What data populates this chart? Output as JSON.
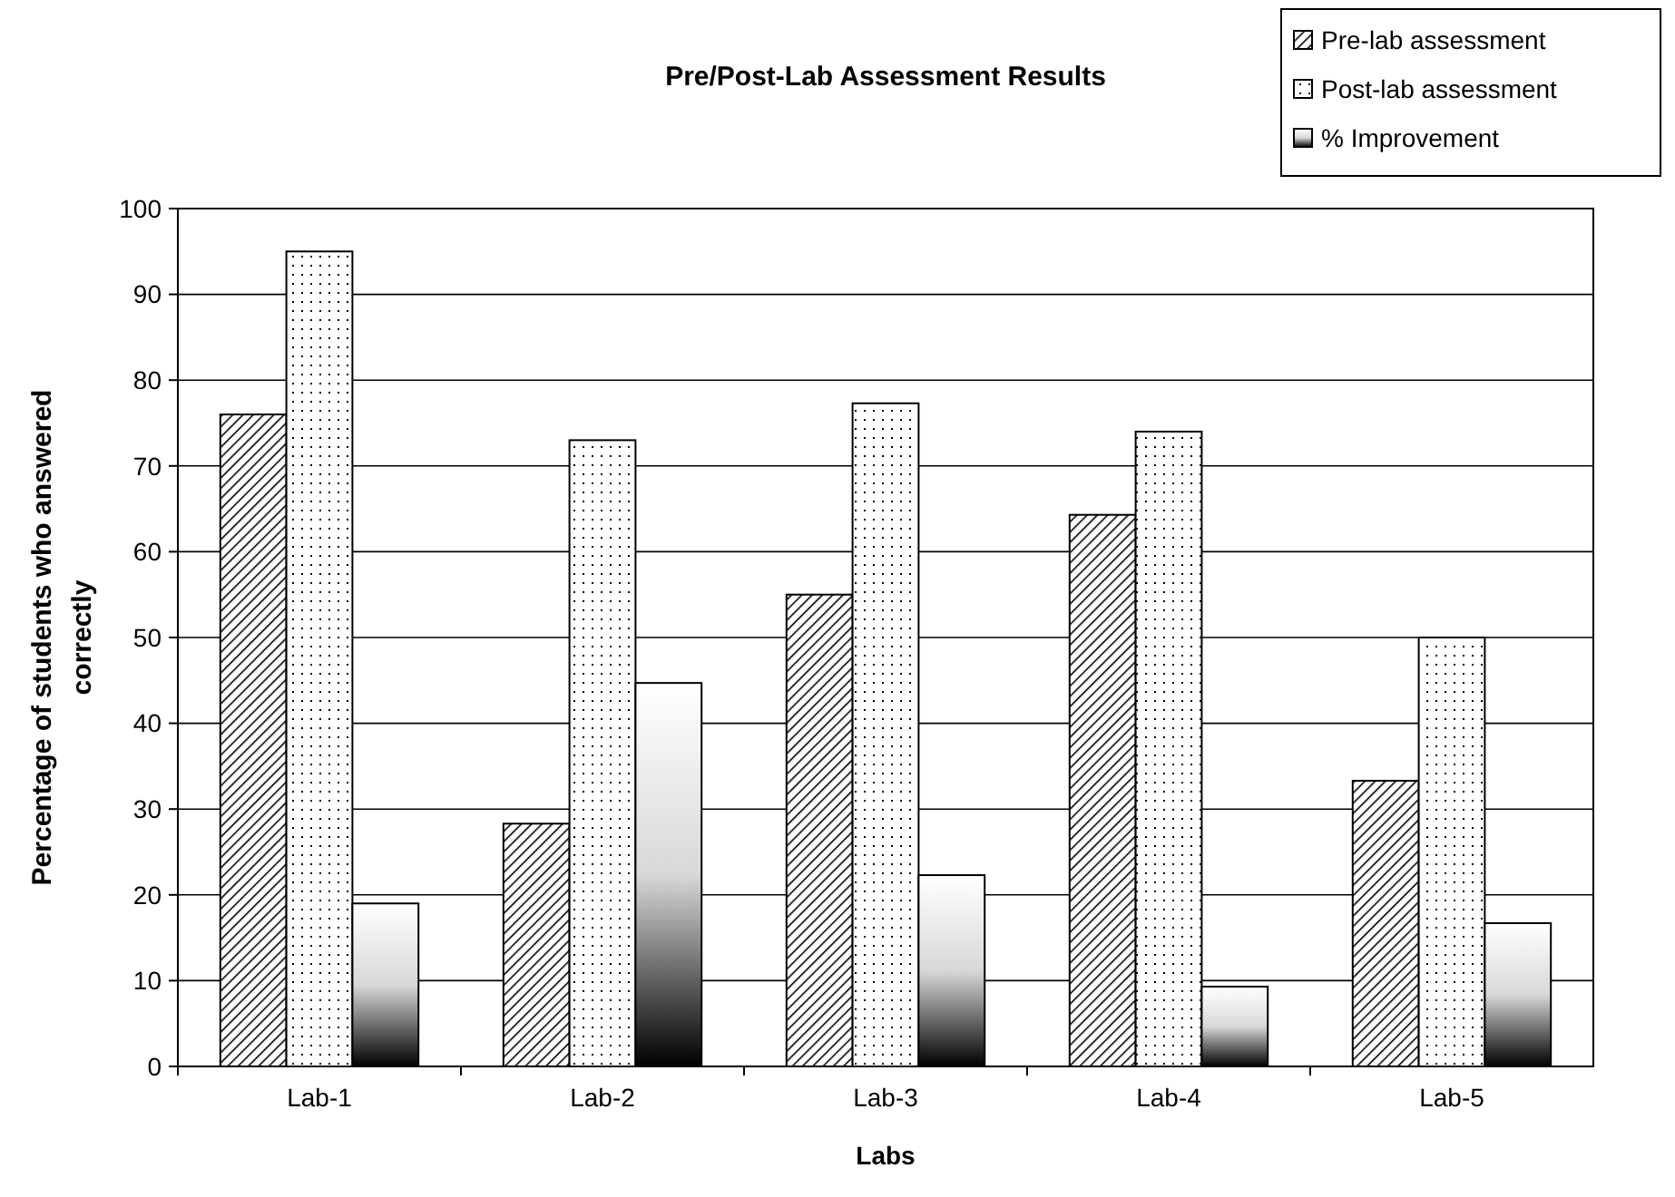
{
  "chart_data": {
    "type": "bar",
    "title": "Pre/Post-Lab Assessment Results",
    "xlabel": "Labs",
    "ylabel": "Percentage of students who answered correctly",
    "categories": [
      "Lab-1",
      "Lab-2",
      "Lab-3",
      "Lab-4",
      "Lab-5"
    ],
    "series": [
      {
        "name": "Pre-lab assessment",
        "color": "#000000",
        "values": [
          76,
          28.3,
          55,
          64.3,
          33.3
        ]
      },
      {
        "name": "Post-lab assessment",
        "color": "#000000",
        "values": [
          95,
          73,
          77.3,
          74,
          50
        ]
      },
      {
        "name": "% Improvement",
        "color": "#000000",
        "values": [
          19,
          44.7,
          22.3,
          9.3,
          16.7
        ]
      }
    ],
    "ylim": [
      0,
      100
    ],
    "yticks": [
      0,
      10,
      20,
      30,
      40,
      50,
      60,
      70,
      80,
      90,
      100
    ],
    "grid": "y",
    "legend": "top right"
  }
}
